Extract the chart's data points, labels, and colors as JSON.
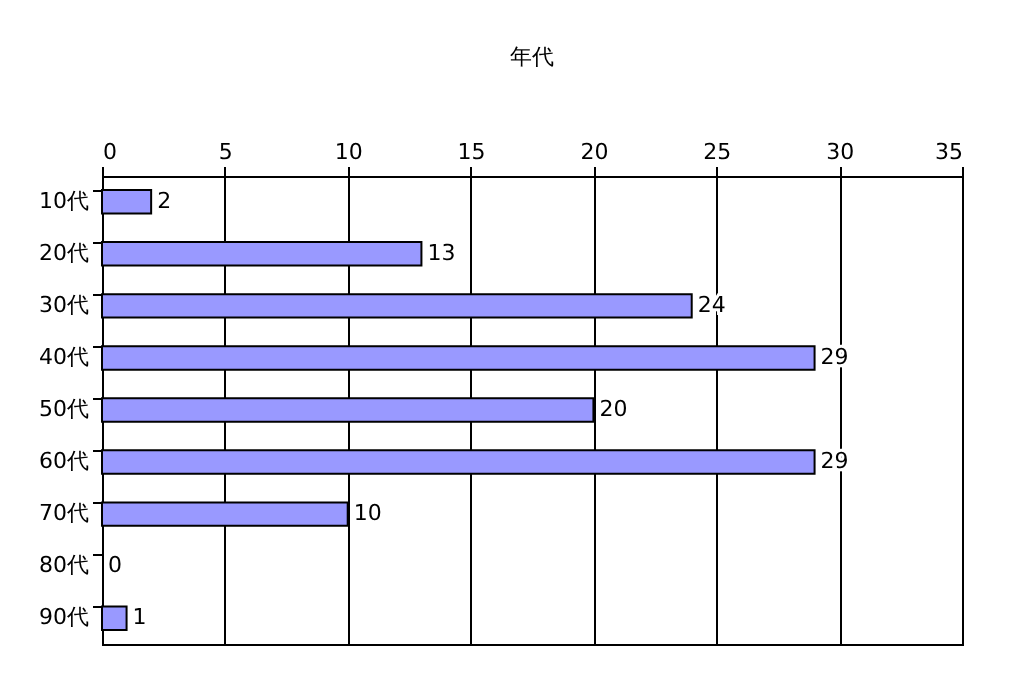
{
  "chart_data": {
    "type": "bar",
    "title": "年代",
    "orientation": "horizontal",
    "categories": [
      "10代",
      "20代",
      "30代",
      "40代",
      "50代",
      "60代",
      "70代",
      "80代",
      "90代"
    ],
    "values": [
      2,
      13,
      24,
      29,
      20,
      29,
      10,
      0,
      1
    ],
    "color": "#9999ff",
    "xlim": [
      0,
      35
    ],
    "xticks": [
      0,
      5,
      10,
      15,
      20,
      25,
      30,
      35
    ],
    "grid": "x",
    "data_labels": true
  }
}
